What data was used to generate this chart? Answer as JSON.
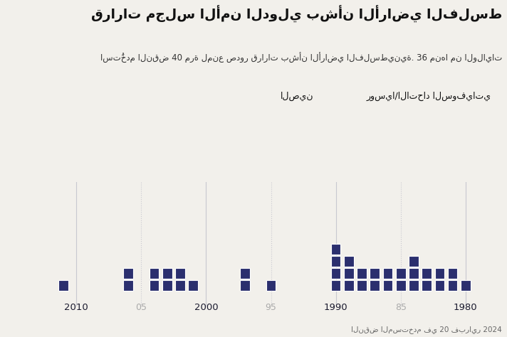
{
  "title": "قرارات مجلس الأمن الدولي بشأن الأراضي الفلسط",
  "subtitle": "استُخدم النقض 40 مرة لمنع صدور قرارات بشأن الأراضي الفلسطينية. 36 منها من الولايات",
  "source": "النقض المستخدم في 20 فبراير 2024",
  "legend_russia": "روسيا/الاتحاد السوفياتي",
  "legend_china": "الصين",
  "bg_color": "#F2F0EB",
  "sq_color": "#2B2F6E",
  "russia_color": "#C8855A",
  "china_color": "#C4A0C0",
  "veto_data": {
    "2011": 1,
    "2006": 2,
    "2004": 2,
    "2003": 2,
    "2002": 2,
    "2001": 1,
    "1997": 2,
    "1995": 1,
    "1990": 4,
    "1989": 3,
    "1988": 2,
    "1987": 2,
    "1986": 2,
    "1985": 2,
    "1984": 3,
    "1983": 2,
    "1982": 2,
    "1981": 2,
    "1980": 1
  },
  "major_years": [
    2010,
    2000,
    1990,
    1980
  ],
  "minor_years": [
    2005,
    1995,
    1985
  ],
  "minor_labels": [
    "05",
    "95",
    "85"
  ],
  "figsize": [
    7.12,
    4.74
  ],
  "dpi": 100
}
